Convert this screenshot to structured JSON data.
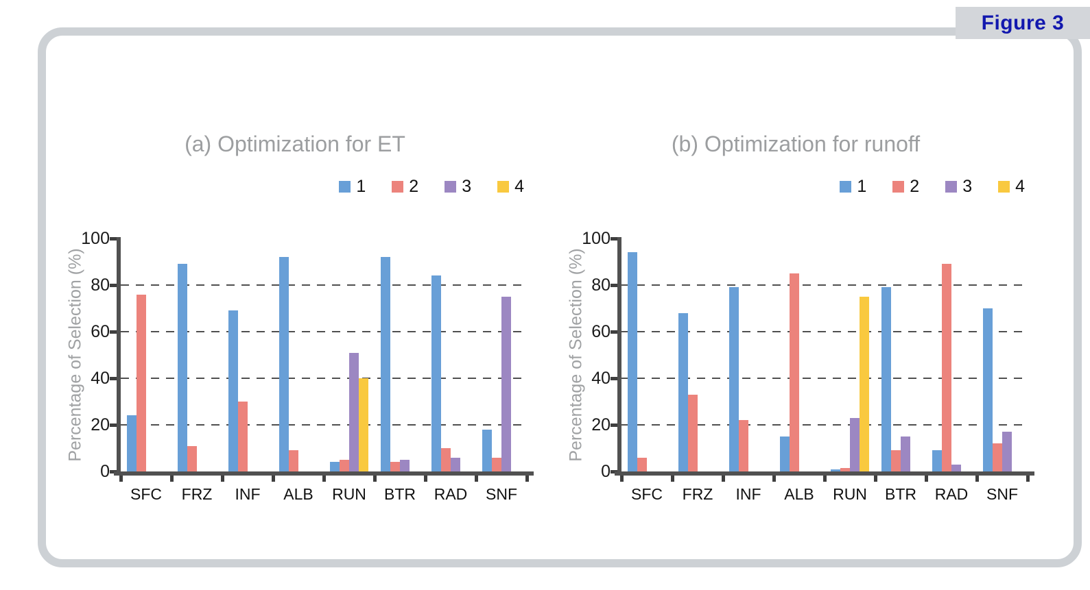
{
  "figure_label": "Figure 3",
  "ui_colors": {
    "frame_border": "#cdd1d5",
    "figure_tab_bg": "#d3d6da",
    "figure_tab_text": "#1218ae",
    "title_gray": "#9c9ea0",
    "axis_gray": "#515151",
    "tick_text": "#1a1a1a",
    "series_colors": [
      "#689fd7",
      "#ec837c",
      "#9c87c2",
      "#f9c93f"
    ]
  },
  "chart_data": [
    {
      "type": "bar",
      "title": "(a) Optimization for ET",
      "ylabel": "Percentage of Selection (%)",
      "xlabel": "",
      "ylim": [
        0,
        100
      ],
      "yticks": [
        0,
        20,
        40,
        60,
        80,
        100
      ],
      "grid": "horizontal dashed at 20,40,60,80",
      "legend_position": "top-right",
      "legend_labels": [
        "1",
        "2",
        "3",
        "4"
      ],
      "categories": [
        "SFC",
        "FRZ",
        "INF",
        "ALB",
        "RUN",
        "BTR",
        "RAD",
        "SNF"
      ],
      "series": [
        {
          "name": "1",
          "values": [
            24,
            89,
            69,
            92,
            4,
            92,
            84,
            18
          ]
        },
        {
          "name": "2",
          "values": [
            76,
            11,
            30,
            9,
            5,
            4,
            10,
            6
          ]
        },
        {
          "name": "3",
          "values": [
            0,
            0,
            0,
            0,
            51,
            5,
            6,
            75
          ]
        },
        {
          "name": "4",
          "values": [
            0,
            0,
            0,
            0,
            40,
            0,
            0,
            0
          ]
        }
      ]
    },
    {
      "type": "bar",
      "title": "(b) Optimization for runoff",
      "ylabel": "Percentage of Selection (%)",
      "xlabel": "",
      "ylim": [
        0,
        100
      ],
      "yticks": [
        0,
        20,
        40,
        60,
        80,
        100
      ],
      "grid": "horizontal dashed at 20,40,60,80",
      "legend_position": "top-right",
      "legend_labels": [
        "1",
        "2",
        "3",
        "4"
      ],
      "categories": [
        "SFC",
        "FRZ",
        "INF",
        "ALB",
        "RUN",
        "BTR",
        "RAD",
        "SNF"
      ],
      "series": [
        {
          "name": "1",
          "values": [
            94,
            68,
            79,
            15,
            1,
            79,
            9,
            70
          ]
        },
        {
          "name": "2",
          "values": [
            6,
            33,
            22,
            85,
            1.5,
            9,
            89,
            12
          ]
        },
        {
          "name": "3",
          "values": [
            0,
            0,
            0,
            0,
            23,
            15,
            3,
            17
          ]
        },
        {
          "name": "4",
          "values": [
            0,
            0,
            0,
            0,
            75,
            0,
            0,
            0
          ]
        }
      ]
    }
  ]
}
